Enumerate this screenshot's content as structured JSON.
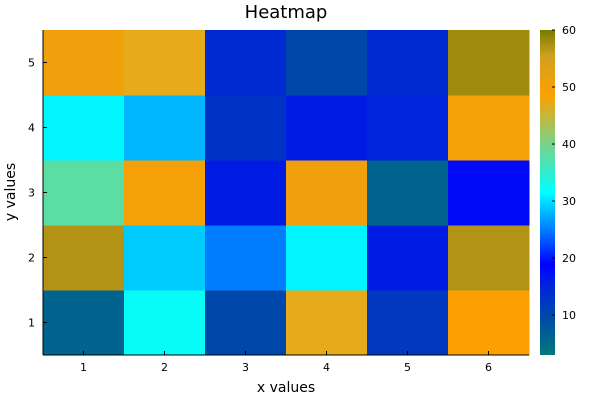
{
  "chart_data": {
    "type": "heatmap",
    "title": "Heatmap",
    "xlabel": "x values",
    "ylabel": "y values",
    "x": [
      1,
      2,
      3,
      4,
      5,
      6
    ],
    "y": [
      1,
      2,
      3,
      4,
      5
    ],
    "x_ticks": [
      "1",
      "2",
      "3",
      "4",
      "5",
      "6"
    ],
    "y_ticks": [
      "1",
      "2",
      "3",
      "4",
      "5"
    ],
    "values": [
      [
        6,
        32,
        10,
        47,
        12,
        49
      ],
      [
        57,
        29,
        25,
        31,
        16,
        57
      ],
      [
        38,
        50,
        16,
        51,
        6,
        18
      ],
      [
        31,
        28,
        13,
        16,
        15,
        50
      ],
      [
        51,
        47,
        14,
        10,
        14,
        58
      ]
    ],
    "colorbar": {
      "range": [
        3,
        60
      ],
      "ticks": [
        "10",
        "20",
        "30",
        "40",
        "50",
        "60"
      ],
      "stops": [
        [
          0.0,
          "#007a7a"
        ],
        [
          0.1,
          "#0050a0"
        ],
        [
          0.22,
          "#0020e0"
        ],
        [
          0.28,
          "#0000ff"
        ],
        [
          0.36,
          "#0060ff"
        ],
        [
          0.44,
          "#00b8ff"
        ],
        [
          0.5,
          "#00ffff"
        ],
        [
          0.66,
          "#80d080"
        ],
        [
          0.8,
          "#ffa000"
        ],
        [
          0.92,
          "#d0a020"
        ],
        [
          1.0,
          "#7a7a00"
        ]
      ]
    }
  }
}
